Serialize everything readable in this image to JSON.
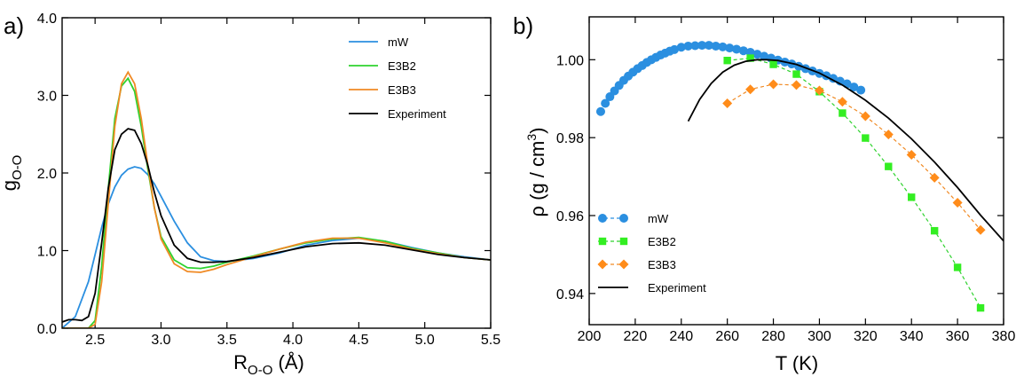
{
  "colors": {
    "mW": "#2b8fe0",
    "E3B2": "#2fd22f",
    "E3B3": "#f08a24",
    "Experiment": "#000000",
    "E3B2_marker": "#33ee22",
    "E3B3_marker": "#ff8c1a"
  },
  "panels": {
    "a": {
      "label": "a)"
    },
    "b": {
      "label": "b)"
    }
  },
  "chart_data": [
    {
      "type": "line",
      "panel": "a",
      "xlabel_main": "R",
      "xlabel_sub": "O-O",
      "xlabel_unit": " (Å)",
      "ylabel_main": "g",
      "ylabel_sub": "O-O",
      "xlim": [
        2.25,
        5.5
      ],
      "ylim": [
        0.0,
        4.0
      ],
      "xticks": [
        2.5,
        3.0,
        3.5,
        4.0,
        4.5,
        5.0,
        5.5
      ],
      "xtick_labels": [
        "2.5",
        "3.0",
        "3.5",
        "4.0",
        "4.5",
        "5.0",
        "5.5"
      ],
      "yticks": [
        0.0,
        1.0,
        2.0,
        3.0,
        4.0
      ],
      "ytick_labels": [
        "0.0",
        "1.0",
        "2.0",
        "3.0",
        "4.0"
      ],
      "legend_position": "top-right",
      "series": [
        {
          "name": "mW",
          "x": [
            2.25,
            2.35,
            2.45,
            2.5,
            2.55,
            2.6,
            2.65,
            2.7,
            2.75,
            2.8,
            2.85,
            2.9,
            2.95,
            3.0,
            3.1,
            3.2,
            3.3,
            3.4,
            3.5,
            3.7,
            3.9,
            4.1,
            4.3,
            4.5,
            4.7,
            4.9,
            5.1,
            5.3,
            5.5
          ],
          "y": [
            0.0,
            0.15,
            0.6,
            0.95,
            1.3,
            1.6,
            1.82,
            1.97,
            2.05,
            2.08,
            2.06,
            1.98,
            1.86,
            1.7,
            1.38,
            1.1,
            0.92,
            0.87,
            0.86,
            0.9,
            0.97,
            1.07,
            1.13,
            1.16,
            1.12,
            1.04,
            0.97,
            0.92,
            0.88
          ]
        },
        {
          "name": "E3B2",
          "x": [
            2.25,
            2.45,
            2.5,
            2.55,
            2.6,
            2.65,
            2.7,
            2.75,
            2.8,
            2.85,
            2.9,
            2.95,
            3.0,
            3.1,
            3.2,
            3.3,
            3.4,
            3.5,
            3.7,
            3.9,
            4.1,
            4.3,
            4.5,
            4.7,
            4.9,
            5.1,
            5.3,
            5.5
          ],
          "y": [
            0.0,
            0.0,
            0.1,
            0.8,
            1.8,
            2.7,
            3.12,
            3.22,
            3.05,
            2.6,
            2.05,
            1.55,
            1.18,
            0.88,
            0.78,
            0.77,
            0.8,
            0.85,
            0.93,
            1.02,
            1.1,
            1.15,
            1.17,
            1.12,
            1.03,
            0.97,
            0.91,
            0.88
          ]
        },
        {
          "name": "E3B3",
          "x": [
            2.25,
            2.45,
            2.5,
            2.55,
            2.6,
            2.65,
            2.7,
            2.75,
            2.8,
            2.85,
            2.9,
            2.95,
            3.0,
            3.1,
            3.2,
            3.3,
            3.4,
            3.5,
            3.7,
            3.9,
            4.1,
            4.3,
            4.5,
            4.7,
            4.9,
            5.1,
            5.3,
            5.5
          ],
          "y": [
            0.0,
            0.0,
            0.05,
            0.6,
            1.6,
            2.6,
            3.15,
            3.3,
            3.15,
            2.7,
            2.1,
            1.55,
            1.15,
            0.83,
            0.73,
            0.72,
            0.76,
            0.82,
            0.92,
            1.02,
            1.11,
            1.16,
            1.16,
            1.1,
            1.02,
            0.96,
            0.91,
            0.88
          ]
        },
        {
          "name": "Experiment",
          "x": [
            2.25,
            2.3,
            2.35,
            2.4,
            2.45,
            2.5,
            2.55,
            2.6,
            2.65,
            2.7,
            2.75,
            2.8,
            2.85,
            2.9,
            2.95,
            3.0,
            3.1,
            3.2,
            3.3,
            3.4,
            3.5,
            3.7,
            3.9,
            4.1,
            4.3,
            4.5,
            4.7,
            4.9,
            5.1,
            5.3,
            5.5
          ],
          "y": [
            0.08,
            0.11,
            0.11,
            0.1,
            0.15,
            0.45,
            1.1,
            1.8,
            2.3,
            2.5,
            2.57,
            2.55,
            2.38,
            2.1,
            1.75,
            1.45,
            1.07,
            0.9,
            0.85,
            0.85,
            0.86,
            0.91,
            0.98,
            1.05,
            1.09,
            1.1,
            1.07,
            1.01,
            0.95,
            0.91,
            0.88
          ]
        }
      ]
    },
    {
      "type": "line",
      "panel": "b",
      "xlabel": "T (K)",
      "ylabel_main": "ρ (g / cm",
      "ylabel_sup": "3",
      "ylabel_end": ")",
      "xlim": [
        200,
        380
      ],
      "ylim": [
        0.932,
        1.011
      ],
      "xticks": [
        200,
        220,
        240,
        260,
        280,
        300,
        320,
        340,
        360,
        380
      ],
      "xtick_labels": [
        "200",
        "220",
        "240",
        "260",
        "280",
        "300",
        "320",
        "340",
        "360",
        "380"
      ],
      "yticks": [
        0.94,
        0.96,
        0.98,
        1.0
      ],
      "ytick_labels": [
        "0.94",
        "0.96",
        "0.98",
        "1.00"
      ],
      "legend_position": "bottom-left",
      "series": [
        {
          "name": "mW",
          "marker": "circle",
          "x": [
            205,
            207,
            209,
            211,
            213,
            215,
            217,
            219,
            221,
            223,
            225,
            227,
            229,
            231,
            233,
            235,
            237,
            240,
            243,
            246,
            249,
            252,
            255,
            258,
            261,
            264,
            267,
            270,
            273,
            276,
            279,
            282,
            285,
            288,
            291,
            294,
            297,
            300,
            303,
            306,
            309,
            312,
            315,
            318
          ],
          "y": [
            0.9867,
            0.9888,
            0.9905,
            0.992,
            0.9934,
            0.9947,
            0.9958,
            0.9968,
            0.9977,
            0.9985,
            0.9993,
            1.0,
            1.0006,
            1.0012,
            1.0017,
            1.0022,
            1.0026,
            1.0032,
            1.0035,
            1.0036,
            1.0037,
            1.0037,
            1.0035,
            1.0033,
            1.003,
            1.0027,
            1.0023,
            1.0019,
            1.0014,
            1.0009,
            1.0004,
            0.9999,
            0.9994,
            0.9989,
            0.9983,
            0.9977,
            0.9971,
            0.9965,
            0.9959,
            0.9952,
            0.9945,
            0.9938,
            0.993,
            0.9922
          ]
        },
        {
          "name": "E3B2",
          "marker": "square",
          "x": [
            260,
            270,
            280,
            290,
            300,
            310,
            320,
            330,
            340,
            350,
            360,
            370
          ],
          "y": [
            0.9998,
            1.0004,
            0.9988,
            0.9963,
            0.9918,
            0.9863,
            0.9799,
            0.9726,
            0.9647,
            0.9561,
            0.9467,
            0.9363
          ]
        },
        {
          "name": "E3B3",
          "marker": "diamond",
          "x": [
            260,
            270,
            280,
            290,
            300,
            310,
            320,
            330,
            340,
            350,
            360,
            370
          ],
          "y": [
            0.9888,
            0.9924,
            0.9937,
            0.9935,
            0.9921,
            0.9892,
            0.9855,
            0.9808,
            0.9756,
            0.9697,
            0.9633,
            0.9563
          ]
        },
        {
          "name": "Experiment",
          "marker": "none",
          "x": [
            243,
            248,
            253,
            258,
            263,
            268,
            273,
            277,
            282,
            290,
            300,
            310,
            320,
            330,
            340,
            350,
            360,
            370,
            380
          ],
          "y": [
            0.9842,
            0.9898,
            0.9939,
            0.9968,
            0.9986,
            0.9996,
            1.0,
            1.0,
            0.9998,
            0.9988,
            0.9966,
            0.9935,
            0.9896,
            0.985,
            0.9797,
            0.9737,
            0.9672,
            0.9601,
            0.9535
          ]
        }
      ]
    }
  ]
}
